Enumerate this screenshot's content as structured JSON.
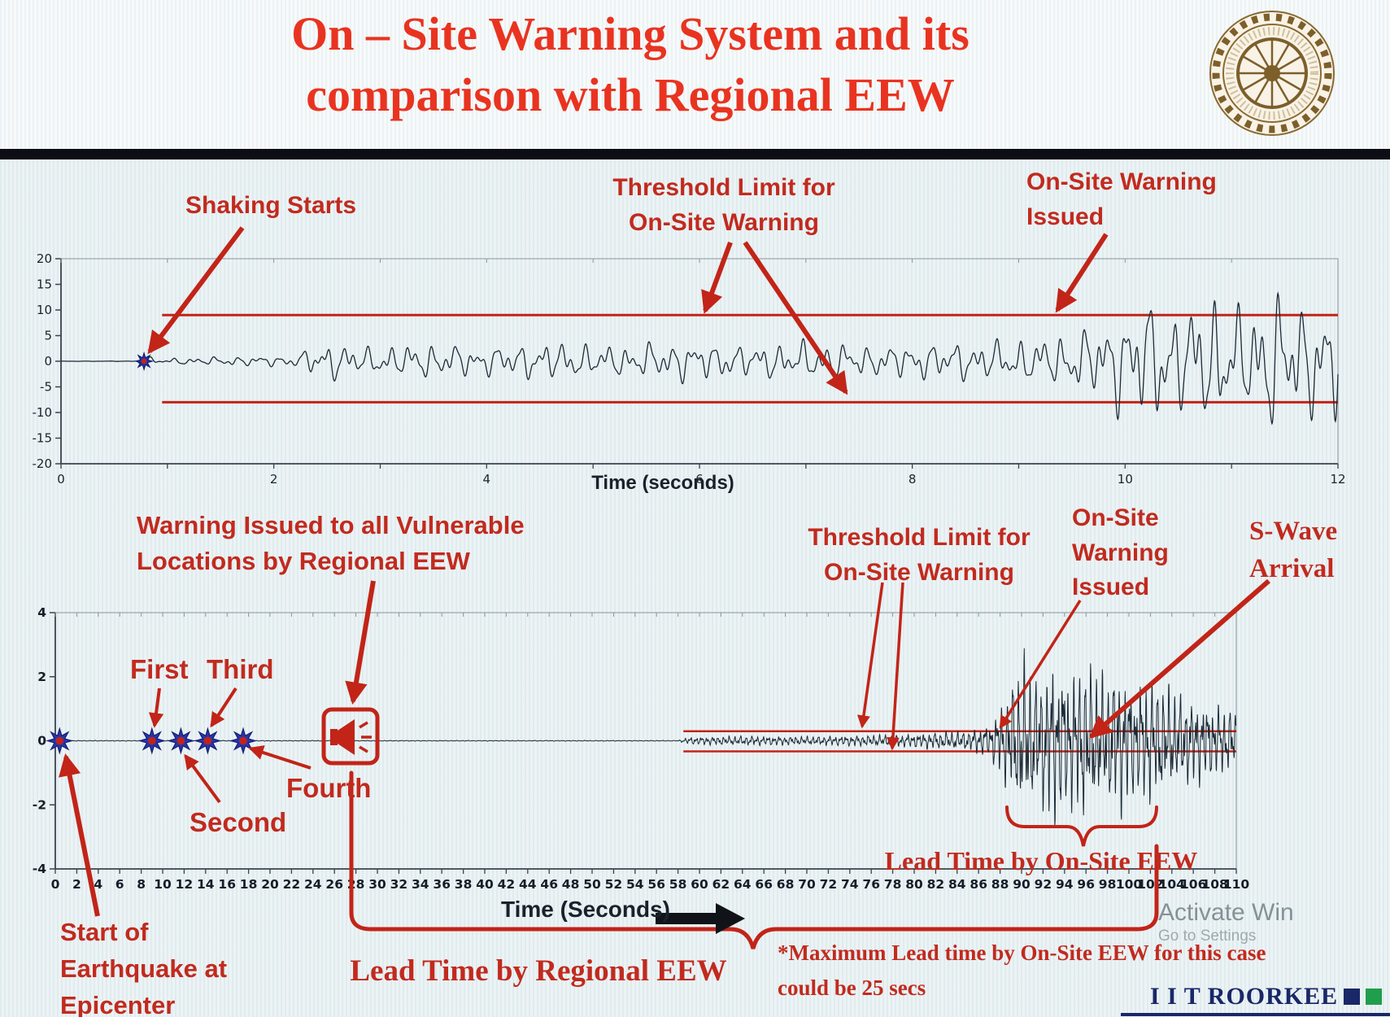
{
  "header": {
    "title_line1": "On – Site Warning System and its",
    "title_line2": "comparison with Regional EEW"
  },
  "annotations": {
    "top": {
      "shaking_starts": "Shaking Starts",
      "threshold_line1": "Threshold Limit for",
      "threshold_line2": "On-Site Warning",
      "warning_line1": "On-Site Warning",
      "warning_line2": "Issued"
    },
    "bottom": {
      "regional_line1": "Warning Issued to all Vulnerable",
      "regional_line2": "Locations by Regional EEW",
      "first": "First",
      "second": "Second",
      "third": "Third",
      "fourth": "Fourth",
      "threshold_line1": "Threshold Limit for",
      "threshold_line2": "On-Site Warning",
      "onsite_line1": "On-Site",
      "onsite_line2": "Warning",
      "onsite_line3": "Issued",
      "swave_line1": "S-Wave",
      "swave_line2": "Arrival",
      "lead_onsite": "Lead Time by On-Site EEW",
      "lead_regional": "Lead Time by Regional EEW",
      "start_line1": "Start of",
      "start_line2": "Earthquake at",
      "start_line3": "Epicenter",
      "max_line1": "*Maximum Lead time by On-Site EEW for this case",
      "max_line2": "could be 25 secs"
    }
  },
  "footer": {
    "brand": "I I T ROORKEE",
    "brand_square_colors": [
      "#1a2768",
      "#1f9e4c"
    ],
    "watermark_line1": "Activate Win",
    "watermark_line2": "Go to Settings"
  },
  "colors": {
    "annotation_red": "#c22a1e",
    "title_red": "#e93320",
    "waveform": "#1b2a36",
    "threshold": "#c22418",
    "star_blue": "#2636ae",
    "star_center_red": "#c22418"
  },
  "chart_data": [
    {
      "type": "line",
      "name": "onsite-accelerogram",
      "xlabel": "Time (seconds)",
      "xlim": [
        0,
        12
      ],
      "xtick_step": 1,
      "xticks_labeled": [
        0,
        2,
        4,
        6,
        8,
        10,
        12
      ],
      "ylim": [
        -20,
        20
      ],
      "yticks": [
        20,
        15,
        10,
        5,
        0,
        -5,
        -10,
        -15,
        -20
      ],
      "threshold_upper": 9,
      "threshold_lower": -8,
      "threshold_start_x": 0.95,
      "shaking_start_x": 0.78,
      "onsite_warning_issued_x": 9.4,
      "line_color": "#1b2a36",
      "threshold_color": "#c22418",
      "dt": 0.004,
      "noise": [
        [
          0.42,
          4.9,
          0.7
        ],
        [
          0.3,
          8.3,
          2.1
        ],
        [
          0.18,
          13.7,
          4.2
        ],
        [
          0.1,
          2.17,
          1.3
        ]
      ],
      "envelope": [
        [
          0,
          0.02
        ],
        [
          0.7,
          0.05
        ],
        [
          0.78,
          1.4
        ],
        [
          0.9,
          0.6
        ],
        [
          1.6,
          1.1
        ],
        [
          2.2,
          1.3
        ],
        [
          2.45,
          4.8
        ],
        [
          2.9,
          3.2
        ],
        [
          3.4,
          4.2
        ],
        [
          4.0,
          3.4
        ],
        [
          4.6,
          4.6
        ],
        [
          5.2,
          3.6
        ],
        [
          5.8,
          4.8
        ],
        [
          6.4,
          3.8
        ],
        [
          7.0,
          4.6
        ],
        [
          7.6,
          3.6
        ],
        [
          8.2,
          4.4
        ],
        [
          8.8,
          4.8
        ],
        [
          9.3,
          5.6
        ],
        [
          9.6,
          7.5
        ],
        [
          9.9,
          11
        ],
        [
          10.2,
          15
        ],
        [
          10.5,
          12
        ],
        [
          10.8,
          16
        ],
        [
          11.1,
          12
        ],
        [
          11.4,
          17
        ],
        [
          11.7,
          13
        ],
        [
          12,
          15
        ]
      ],
      "markers": [
        {
          "x": 0.78,
          "y": 0,
          "label": "shaking-start"
        }
      ]
    },
    {
      "type": "line",
      "name": "regional-vs-onsite-timeline",
      "xlabel": "Time (Seconds)",
      "xlim": [
        0,
        110
      ],
      "xtick_step": 2,
      "ylim": [
        -4,
        4
      ],
      "yticks": [
        4,
        2,
        0,
        -2,
        -4
      ],
      "threshold_upper": 0.3,
      "threshold_lower": -0.33,
      "threshold_start_x": 58.5,
      "line_color": "#1b2a36",
      "threshold_color": "#c22418",
      "dt": 0.025,
      "noise": [
        [
          0.45,
          1.93,
          0.4
        ],
        [
          0.3,
          3.71,
          2.6
        ],
        [
          0.18,
          7.13,
          5.1
        ],
        [
          0.12,
          0.83,
          1.9
        ]
      ],
      "envelope": [
        [
          0,
          0.015
        ],
        [
          58,
          0.015
        ],
        [
          59,
          0.13
        ],
        [
          64,
          0.17
        ],
        [
          70,
          0.15
        ],
        [
          75,
          0.19
        ],
        [
          79,
          0.22
        ],
        [
          82,
          0.3
        ],
        [
          85,
          0.34
        ],
        [
          87,
          0.6
        ],
        [
          88.5,
          1.6
        ],
        [
          90,
          2.9
        ],
        [
          91.5,
          2.2
        ],
        [
          93,
          3.0
        ],
        [
          94.5,
          2.4
        ],
        [
          96,
          2.9
        ],
        [
          97.5,
          2.2
        ],
        [
          99,
          2.6
        ],
        [
          100.5,
          2.0
        ],
        [
          102,
          2.3
        ],
        [
          104,
          1.8
        ],
        [
          106,
          1.5
        ],
        [
          108,
          1.3
        ],
        [
          110,
          1.1
        ]
      ],
      "p_wave_markers": [
        {
          "x": 0.4,
          "label": "Start of Earthquake at Epicenter"
        },
        {
          "x": 9,
          "label": "First"
        },
        {
          "x": 11.7,
          "label": "Second"
        },
        {
          "x": 14.2,
          "label": "Third"
        },
        {
          "x": 17.5,
          "label": "Fourth"
        }
      ],
      "regional_warning_issued_x": 25,
      "onsite_warning_issued_x": 80,
      "s_wave_arrival_x": 88.5,
      "max_lead_time_note": "*Maximum Lead time by On-Site EEW for this case could be 25 secs"
    }
  ]
}
